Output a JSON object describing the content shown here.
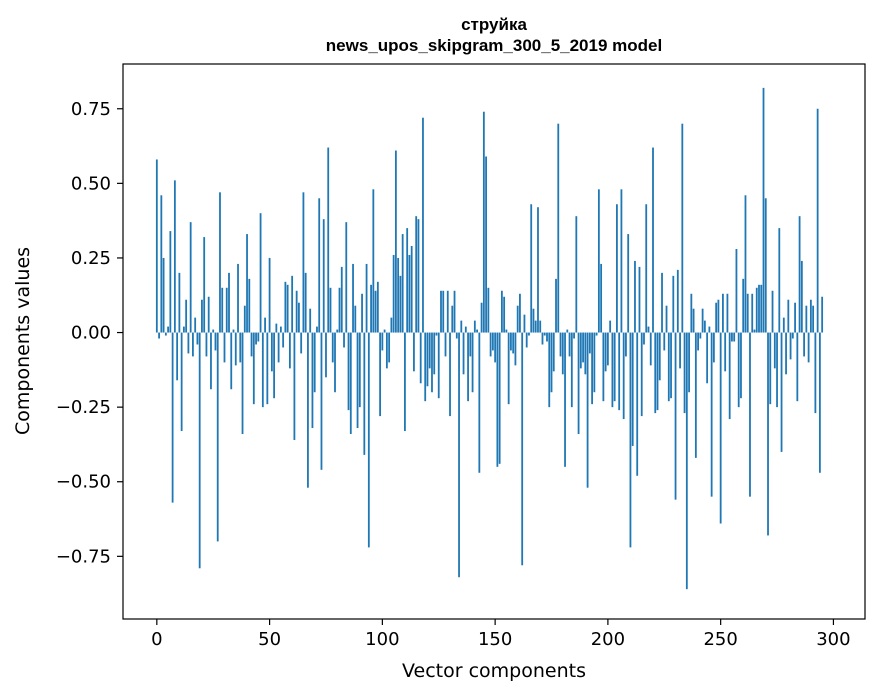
{
  "chart_data": {
    "type": "bar",
    "title_line1": "струйка",
    "title_line2": "news_upos_skipgram_300_5_2019 model",
    "xlabel": "Vector components",
    "ylabel": "Components values",
    "xlim": [
      -15,
      314
    ],
    "ylim": [
      -0.96,
      0.9
    ],
    "xticks": [
      0,
      50,
      100,
      150,
      200,
      250,
      300
    ],
    "xtick_labels": [
      "0",
      "50",
      "100",
      "150",
      "200",
      "250",
      "300"
    ],
    "yticks": [
      -0.75,
      -0.5,
      -0.25,
      0.0,
      0.25,
      0.5,
      0.75
    ],
    "ytick_labels": [
      "−0.75",
      "−0.50",
      "−0.25",
      "0.00",
      "0.25",
      "0.50",
      "0.75"
    ],
    "values": [
      0.58,
      -0.02,
      0.46,
      0.25,
      -0.01,
      0.02,
      0.34,
      -0.57,
      0.51,
      -0.16,
      0.2,
      -0.33,
      0.02,
      0.11,
      -0.07,
      0.37,
      -0.08,
      0.05,
      -0.04,
      -0.79,
      0.11,
      0.32,
      -0.08,
      0.12,
      -0.19,
      0.01,
      -0.06,
      -0.7,
      0.47,
      0.15,
      -0.1,
      0.15,
      0.2,
      -0.19,
      0.01,
      -0.11,
      0.23,
      -0.1,
      -0.34,
      0.09,
      0.33,
      0.18,
      -0.08,
      -0.24,
      -0.04,
      -0.03,
      0.4,
      -0.25,
      0.05,
      -0.24,
      0.25,
      -0.13,
      -0.22,
      0.03,
      -0.1,
      0.02,
      -0.05,
      0.17,
      0.16,
      -0.12,
      0.19,
      -0.36,
      0.14,
      0.1,
      -0.07,
      0.47,
      0.2,
      -0.52,
      0.08,
      -0.32,
      -0.2,
      0.02,
      0.45,
      -0.46,
      0.38,
      -0.15,
      0.62,
      0.15,
      -0.1,
      -0.2,
      0.01,
      0.15,
      0.22,
      -0.05,
      0.37,
      -0.26,
      -0.34,
      0.23,
      0.09,
      -0.32,
      -0.25,
      0.13,
      -0.41,
      0.23,
      -0.72,
      0.16,
      0.48,
      0.14,
      0.17,
      -0.28,
      -0.06,
      0.01,
      -0.12,
      -0.1,
      0.05,
      0.26,
      0.61,
      0.25,
      0.19,
      0.33,
      -0.33,
      0.35,
      0.26,
      0.29,
      -0.13,
      0.39,
      0.38,
      -0.17,
      0.72,
      -0.23,
      -0.18,
      -0.12,
      -0.2,
      -0.14,
      -0.01,
      -0.22,
      0.14,
      0.14,
      -0.08,
      0.14,
      -0.28,
      0.09,
      0.14,
      -0.02,
      -0.82,
      0.04,
      -0.14,
      0.02,
      -0.23,
      -0.08,
      -0.2,
      0.04,
      0.01,
      -0.47,
      0.1,
      0.74,
      0.59,
      0.15,
      -0.08,
      -0.06,
      -0.1,
      -0.45,
      -0.44,
      0.14,
      0.12,
      0.01,
      -0.24,
      -0.06,
      -0.07,
      -0.11,
      0.09,
      0.13,
      -0.78,
      0.06,
      -0.05,
      -0.01,
      0.43,
      0.08,
      0.04,
      0.42,
      0.04,
      -0.04,
      -0.01,
      -0.03,
      -0.25,
      -0.2,
      -0.13,
      0.18,
      0.7,
      -0.08,
      -0.14,
      -0.45,
      0.01,
      -0.08,
      -0.25,
      -0.02,
      0.39,
      -0.34,
      -0.12,
      -0.1,
      -0.14,
      -0.52,
      -0.07,
      -0.24,
      -0.2,
      -0.01,
      0.48,
      0.23,
      -0.23,
      -0.13,
      -0.11,
      0.04,
      -0.25,
      -0.23,
      0.43,
      -0.26,
      0.48,
      -0.29,
      -0.08,
      0.33,
      -0.72,
      -0.38,
      0.24,
      -0.48,
      0.22,
      -0.28,
      -0.04,
      0.43,
      0.02,
      -0.11,
      0.62,
      -0.27,
      -0.26,
      -0.16,
      0.2,
      -0.06,
      0.09,
      -0.23,
      -0.22,
      0.19,
      -0.56,
      0.21,
      -0.12,
      0.7,
      -0.27,
      -0.86,
      -0.2,
      0.13,
      0.08,
      -0.42,
      -0.06,
      -0.02,
      0.08,
      0.04,
      -0.17,
      0.02,
      -0.55,
      -0.1,
      0.1,
      0.11,
      -0.64,
      0.13,
      -0.13,
      0.13,
      -0.29,
      -0.03,
      -0.03,
      0.28,
      -0.25,
      -0.22,
      0.18,
      0.46,
      0.13,
      -0.55,
      0.13,
      0.01,
      0.15,
      0.16,
      0.16,
      0.82,
      0.45,
      -0.68,
      -0.24,
      0.14,
      -0.12,
      -0.25,
      0.35,
      -0.4,
      0.05,
      -0.14,
      0.11,
      -0.09,
      -0.02,
      0.1,
      -0.23,
      0.39,
      0.24,
      -0.08,
      0.09,
      -0.1,
      0.11,
      0.09,
      -0.27,
      0.75,
      -0.47,
      0.12
    ]
  }
}
